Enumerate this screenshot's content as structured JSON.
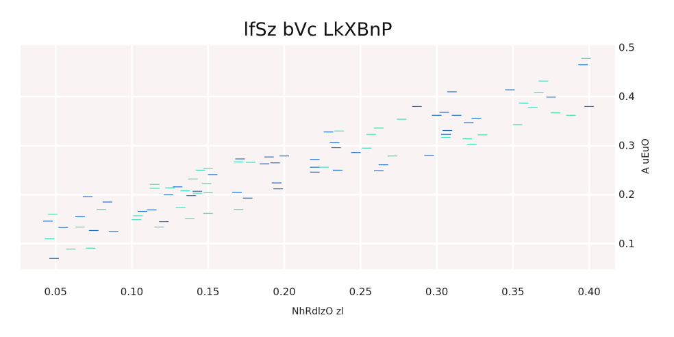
{
  "chart_data": {
    "type": "scatter",
    "title": "lfSz bVc LkXBnP",
    "xlabel": "NhRdlzO zl",
    "ylabel": "A  uEuO",
    "xlim": [
      0.027,
      0.417
    ],
    "ylim": [
      0.048,
      0.505
    ],
    "xticks": [
      0.05,
      0.1,
      0.15,
      0.2,
      0.25,
      0.3,
      0.35,
      0.4
    ],
    "xtick_labels": [
      "0.05",
      "0.10",
      "0.15",
      "0.20",
      "0.25",
      "0.30",
      "0.35",
      "0.40"
    ],
    "yticks": [
      0.1,
      0.2,
      0.3,
      0.4,
      0.5
    ],
    "ytick_labels": [
      "0.1",
      "0.2",
      "0.3",
      "0.4",
      "0.5"
    ],
    "y_axis_position": "right",
    "grid": true,
    "marker": "hline",
    "background_color": "#f9f3f3",
    "grid_color": "#ffffff",
    "series": [
      {
        "color": "#1f6fd6",
        "points": [
          [
            0.045,
            0.146
          ],
          [
            0.049,
            0.07
          ],
          [
            0.055,
            0.133
          ],
          [
            0.066,
            0.155
          ],
          [
            0.071,
            0.196
          ],
          [
            0.075,
            0.127
          ],
          [
            0.084,
            0.185
          ],
          [
            0.088,
            0.125
          ],
          [
            0.107,
            0.166
          ],
          [
            0.113,
            0.169
          ],
          [
            0.121,
            0.145
          ],
          [
            0.124,
            0.2
          ],
          [
            0.13,
            0.216
          ],
          [
            0.139,
            0.198
          ],
          [
            0.143,
            0.207
          ],
          [
            0.153,
            0.241
          ],
          [
            0.169,
            0.205
          ],
          [
            0.171,
            0.273
          ],
          [
            0.176,
            0.193
          ],
          [
            0.187,
            0.263
          ],
          [
            0.19,
            0.277
          ],
          [
            0.194,
            0.265
          ],
          [
            0.195,
            0.224
          ],
          [
            0.196,
            0.212
          ],
          [
            0.2,
            0.279
          ],
          [
            0.22,
            0.272
          ],
          [
            0.22,
            0.256
          ],
          [
            0.22,
            0.246
          ],
          [
            0.229,
            0.328
          ],
          [
            0.233,
            0.306
          ],
          [
            0.234,
            0.296
          ],
          [
            0.235,
            0.25
          ],
          [
            0.247,
            0.286
          ],
          [
            0.262,
            0.249
          ],
          [
            0.265,
            0.261
          ],
          [
            0.287,
            0.38
          ],
          [
            0.295,
            0.28
          ],
          [
            0.3,
            0.362
          ],
          [
            0.305,
            0.368
          ],
          [
            0.306,
            0.323
          ],
          [
            0.307,
            0.331
          ],
          [
            0.31,
            0.41
          ],
          [
            0.313,
            0.362
          ],
          [
            0.321,
            0.347
          ],
          [
            0.326,
            0.356
          ],
          [
            0.348,
            0.414
          ],
          [
            0.375,
            0.399
          ],
          [
            0.396,
            0.465
          ],
          [
            0.4,
            0.38
          ]
        ]
      },
      {
        "color": "#3de0b4",
        "points": [
          [
            0.046,
            0.11
          ],
          [
            0.048,
            0.16
          ],
          [
            0.06,
            0.089
          ],
          [
            0.066,
            0.134
          ],
          [
            0.073,
            0.091
          ],
          [
            0.08,
            0.17
          ],
          [
            0.103,
            0.149
          ],
          [
            0.104,
            0.157
          ],
          [
            0.115,
            0.213
          ],
          [
            0.115,
            0.221
          ],
          [
            0.118,
            0.134
          ],
          [
            0.125,
            0.214
          ],
          [
            0.132,
            0.174
          ],
          [
            0.135,
            0.208
          ],
          [
            0.138,
            0.151
          ],
          [
            0.14,
            0.232
          ],
          [
            0.143,
            0.203
          ],
          [
            0.145,
            0.25
          ],
          [
            0.149,
            0.223
          ],
          [
            0.15,
            0.254
          ],
          [
            0.15,
            0.204
          ],
          [
            0.15,
            0.162
          ],
          [
            0.17,
            0.267
          ],
          [
            0.17,
            0.17
          ],
          [
            0.178,
            0.266
          ],
          [
            0.226,
            0.256
          ],
          [
            0.236,
            0.33
          ],
          [
            0.254,
            0.295
          ],
          [
            0.257,
            0.323
          ],
          [
            0.262,
            0.336
          ],
          [
            0.271,
            0.279
          ],
          [
            0.277,
            0.354
          ],
          [
            0.306,
            0.317
          ],
          [
            0.32,
            0.314
          ],
          [
            0.323,
            0.303
          ],
          [
            0.33,
            0.322
          ],
          [
            0.353,
            0.343
          ],
          [
            0.357,
            0.387
          ],
          [
            0.363,
            0.378
          ],
          [
            0.367,
            0.408
          ],
          [
            0.37,
            0.432
          ],
          [
            0.378,
            0.367
          ],
          [
            0.388,
            0.362
          ],
          [
            0.398,
            0.478
          ]
        ]
      }
    ]
  }
}
